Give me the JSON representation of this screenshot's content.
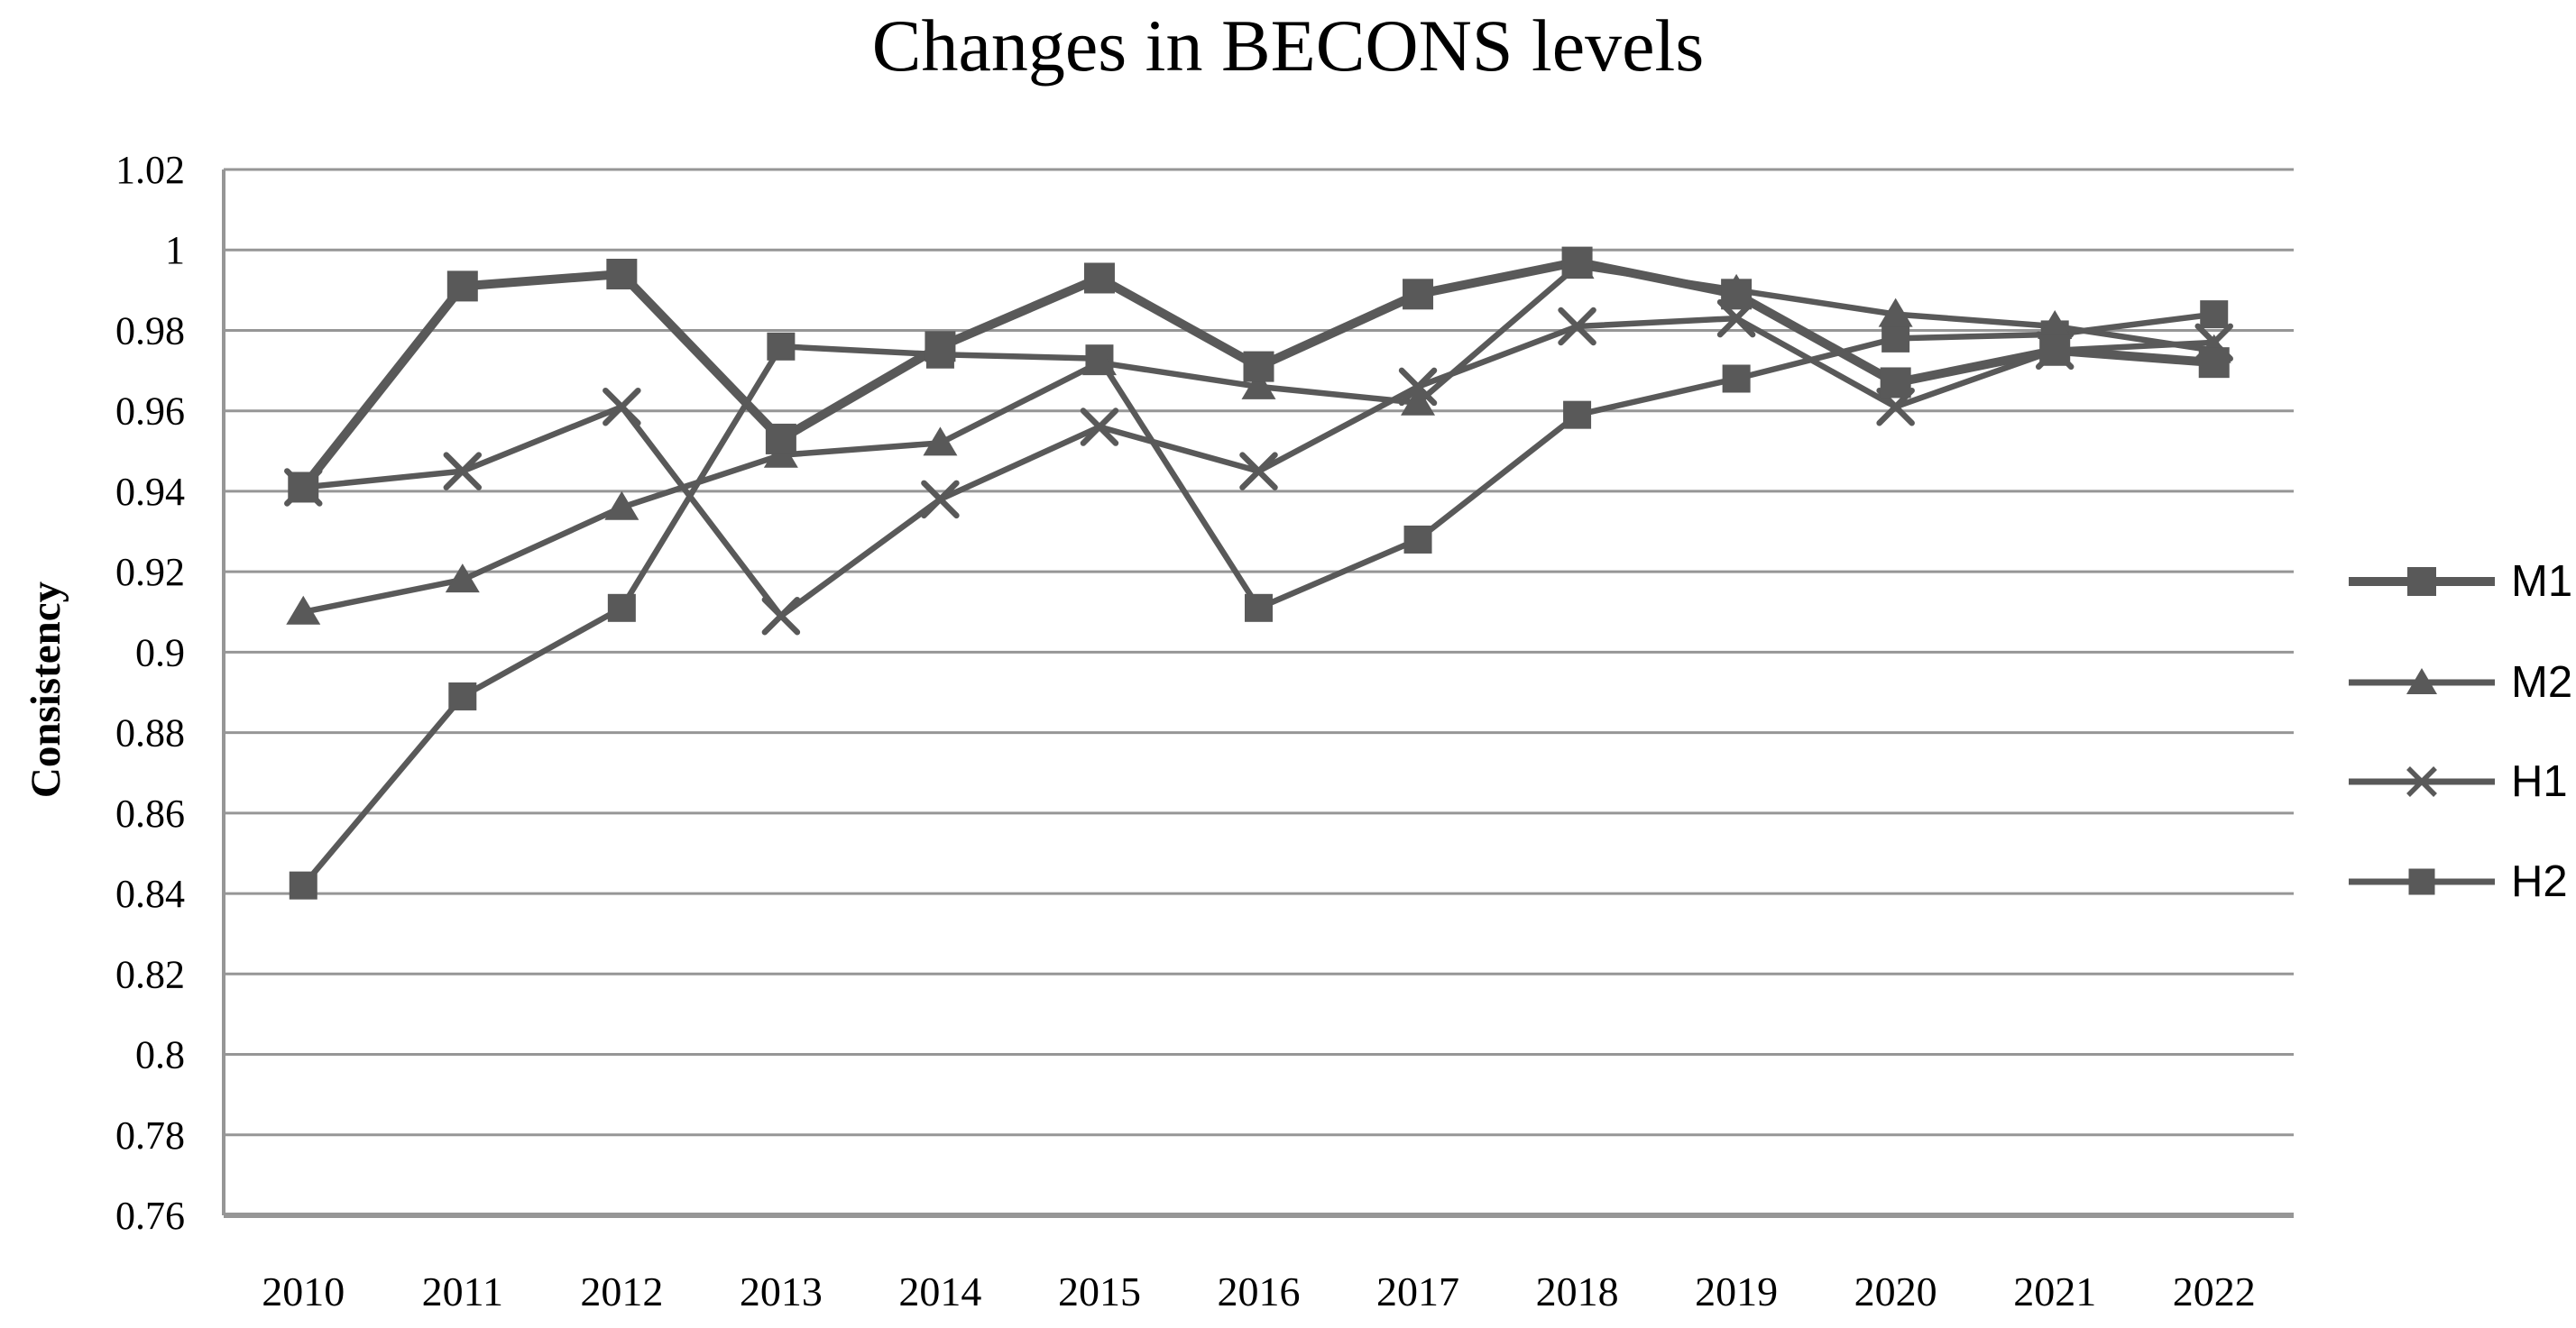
{
  "title": "Changes in BECONS levels",
  "y_axis_label": "Consistency",
  "colors": {
    "series": "#595959",
    "grid": "#969696",
    "text": "#000000",
    "background": "#ffffff"
  },
  "chart_data": {
    "type": "line",
    "title": "Changes in BECONS levels",
    "xlabel": "",
    "ylabel": "Consistency",
    "categories": [
      "2010",
      "2011",
      "2012",
      "2013",
      "2014",
      "2015",
      "2016",
      "2017",
      "2018",
      "2019",
      "2020",
      "2021",
      "2022"
    ],
    "series": [
      {
        "name": "M1",
        "marker": "square",
        "emphasis": true,
        "values": [
          0.941,
          0.991,
          0.994,
          0.953,
          0.976,
          0.993,
          0.971,
          0.989,
          0.997,
          0.989,
          0.967,
          0.975,
          0.972
        ]
      },
      {
        "name": "M2",
        "marker": "triangle",
        "emphasis": false,
        "values": [
          0.91,
          0.918,
          0.936,
          0.949,
          0.952,
          0.972,
          0.966,
          0.962,
          0.996,
          0.99,
          0.984,
          0.981,
          0.975
        ]
      },
      {
        "name": "H1",
        "marker": "x",
        "emphasis": false,
        "values": [
          0.941,
          0.945,
          0.961,
          0.909,
          0.938,
          0.956,
          0.945,
          0.966,
          0.981,
          0.983,
          0.961,
          0.975,
          0.977
        ]
      },
      {
        "name": "H2",
        "marker": "square",
        "emphasis": false,
        "values": [
          0.842,
          0.889,
          0.911,
          0.976,
          0.974,
          0.973,
          0.911,
          0.928,
          0.959,
          0.968,
          0.978,
          0.979,
          0.984
        ]
      }
    ],
    "ylim": [
      0.76,
      1.02
    ],
    "ytick_step": 0.02,
    "y_tick_labels": [
      "1.02",
      "1",
      "0.98",
      "0.96",
      "0.94",
      "0.92",
      "0.9",
      "0.88",
      "0.86",
      "0.84",
      "0.82",
      "0.8",
      "0.78",
      "0.76"
    ],
    "grid": true,
    "legend_position": "right"
  },
  "legend": {
    "items": [
      "M1",
      "M2",
      "H1",
      "H2"
    ]
  }
}
